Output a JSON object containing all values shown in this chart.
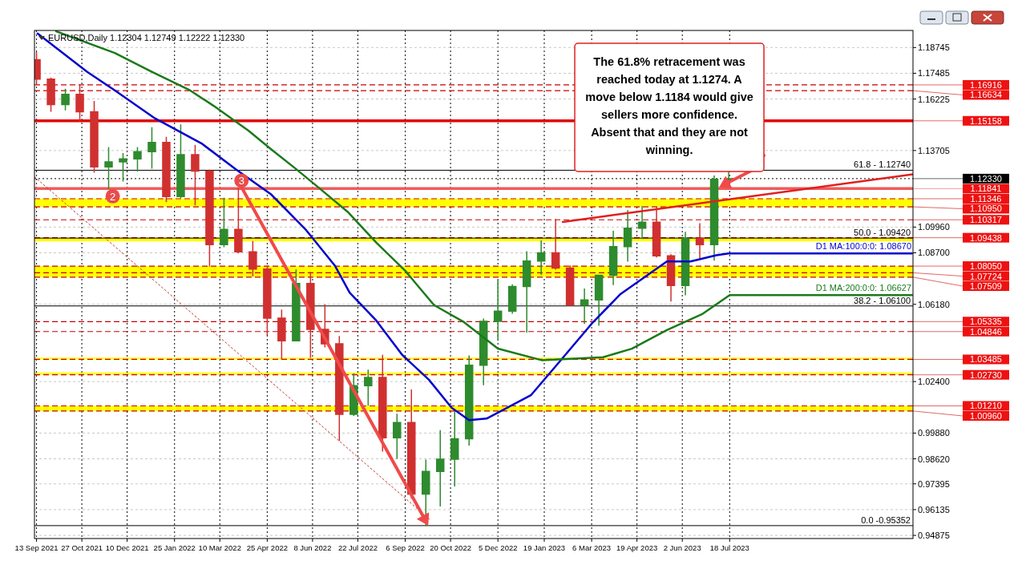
{
  "chart_data": {
    "type": "candlestick",
    "title": "EURUSD,Daily  1.12304 1.12749 1.12222 1.12330",
    "x": [
      "2021-09-13",
      "2021-09-27",
      "2021-10-11",
      "2021-10-25",
      "2021-11-08",
      "2021-11-22",
      "2021-12-06",
      "2021-12-20",
      "2022-01-03",
      "2022-01-17",
      "2022-01-31",
      "2022-02-14",
      "2022-02-28",
      "2022-03-14",
      "2022-03-28",
      "2022-04-11",
      "2022-04-25",
      "2022-05-09",
      "2022-05-23",
      "2022-06-06",
      "2022-06-20",
      "2022-07-04",
      "2022-07-18",
      "2022-08-01",
      "2022-08-15",
      "2022-08-29",
      "2022-09-12",
      "2022-09-26",
      "2022-10-10",
      "2022-10-24",
      "2022-11-07",
      "2022-11-21",
      "2022-12-05",
      "2022-12-19",
      "2023-01-02",
      "2023-01-16",
      "2023-01-30",
      "2023-02-13",
      "2023-02-27",
      "2023-03-13",
      "2023-03-27",
      "2023-04-10",
      "2023-04-24",
      "2023-05-08",
      "2023-05-22",
      "2023-06-05",
      "2023-06-19",
      "2023-07-03",
      "2023-07-17"
    ],
    "ohlc": [
      [
        1.1815,
        1.185,
        1.17,
        1.172
      ],
      [
        1.172,
        1.1725,
        1.1563,
        1.1595
      ],
      [
        1.1595,
        1.167,
        1.157,
        1.1645
      ],
      [
        1.1645,
        1.1692,
        1.1515,
        1.156
      ],
      [
        1.156,
        1.161,
        1.1265,
        1.129
      ],
      [
        1.129,
        1.1385,
        1.1186,
        1.1315
      ],
      [
        1.1315,
        1.1355,
        1.1222,
        1.133
      ],
      [
        1.133,
        1.1385,
        1.127,
        1.1365
      ],
      [
        1.1365,
        1.1482,
        1.1285,
        1.141
      ],
      [
        1.141,
        1.1435,
        1.1121,
        1.1145
      ],
      [
        1.1145,
        1.1495,
        1.114,
        1.135
      ],
      [
        1.135,
        1.1395,
        1.1105,
        1.127
      ],
      [
        1.127,
        1.1275,
        1.0806,
        1.091
      ],
      [
        1.091,
        1.1137,
        1.09,
        1.0985
      ],
      [
        1.0985,
        1.1185,
        1.087,
        1.0875
      ],
      [
        1.0875,
        1.0925,
        1.0758,
        1.079
      ],
      [
        1.079,
        1.0805,
        1.047,
        1.055
      ],
      [
        1.055,
        1.059,
        1.035,
        1.044
      ],
      [
        1.044,
        1.0786,
        1.044,
        1.072
      ],
      [
        1.072,
        1.0774,
        1.0359,
        1.0495
      ],
      [
        1.0495,
        1.0615,
        1.041,
        1.0425
      ],
      [
        1.0425,
        1.046,
        0.9952,
        1.008
      ],
      [
        1.008,
        1.0278,
        1.0075,
        1.022
      ],
      [
        1.022,
        1.0295,
        1.0125,
        1.026
      ],
      [
        1.026,
        1.0368,
        0.99,
        0.9965
      ],
      [
        0.9965,
        1.008,
        0.9865,
        1.004
      ],
      [
        1.004,
        1.0198,
        0.967,
        0.969
      ],
      [
        0.969,
        0.9855,
        0.9536,
        0.98
      ],
      [
        0.98,
        0.9999,
        0.9632,
        0.986
      ],
      [
        0.986,
        1.0093,
        0.973,
        0.996
      ],
      [
        0.996,
        1.0365,
        0.993,
        1.032
      ],
      [
        1.032,
        1.0545,
        1.0225,
        1.0535
      ],
      [
        1.0535,
        1.0736,
        1.0445,
        1.0585
      ],
      [
        1.0585,
        1.0713,
        1.0575,
        1.0705
      ],
      [
        1.0705,
        1.0875,
        1.0483,
        1.083
      ],
      [
        1.083,
        1.0928,
        1.0765,
        1.087
      ],
      [
        1.087,
        1.1033,
        1.079,
        1.0795
      ],
      [
        1.0795,
        1.0805,
        1.0613,
        1.0615
      ],
      [
        1.0615,
        1.0692,
        1.0525,
        1.064
      ],
      [
        1.064,
        1.076,
        1.0516,
        1.076
      ],
      [
        1.076,
        1.0975,
        1.0715,
        1.09
      ],
      [
        1.09,
        1.1076,
        1.083,
        1.099
      ],
      [
        1.099,
        1.1095,
        1.094,
        1.102
      ],
      [
        1.102,
        1.1092,
        1.085,
        1.0855
      ],
      [
        1.0855,
        1.086,
        1.0635,
        1.071
      ],
      [
        1.071,
        1.097,
        1.0665,
        1.094
      ],
      [
        1.094,
        1.1012,
        1.0845,
        1.091
      ],
      [
        1.091,
        1.1245,
        1.0835,
        1.123
      ],
      [
        1.12304,
        1.12749,
        1.12222,
        1.1233
      ]
    ],
    "series": [
      {
        "type": "line",
        "name": "D1 MA:100:0:0: 1.08670",
        "color": "#0000cc",
        "x": [
          "2021-09-14",
          "2021-11-01",
          "2021-11-28",
          "2022-01-06",
          "2022-02-20",
          "2022-03-26",
          "2022-04-29",
          "2022-06-02",
          "2022-06-30",
          "2022-07-14",
          "2022-08-09",
          "2022-09-03",
          "2022-09-29",
          "2022-10-21",
          "2022-11-07",
          "2022-11-24",
          "2023-01-06",
          "2023-02-06",
          "2023-03-06",
          "2023-04-03",
          "2023-05-18",
          "2023-06-10",
          "2023-07-05",
          "2023-07-17",
          "2024-01-11"
        ],
        "values": [
          1.1943,
          1.1756,
          1.1665,
          1.1528,
          1.1406,
          1.1277,
          1.1155,
          1.098,
          1.0805,
          1.0675,
          1.0538,
          1.0371,
          1.0249,
          1.0112,
          1.0051,
          1.0059,
          1.0173,
          1.0356,
          1.0523,
          1.0668,
          1.0828,
          1.0828,
          1.0858,
          1.0867,
          1.0867
        ]
      },
      {
        "type": "line",
        "name": "D1 MA:200:0:0: 1.06627",
        "color": "#1a7a1a",
        "x": [
          "2021-10-02",
          "2021-11-28",
          "2022-01-03",
          "2022-02-09",
          "2022-03-04",
          "2022-04-07",
          "2022-04-29",
          "2022-05-22",
          "2022-06-13",
          "2022-07-12",
          "2022-08-09",
          "2022-09-06",
          "2022-10-04",
          "2022-11-02",
          "2022-12-05",
          "2023-01-17",
          "2023-03-17",
          "2023-04-14",
          "2023-05-18",
          "2023-06-21",
          "2023-07-18",
          "2024-01-11"
        ],
        "values": [
          1.1954,
          1.1848,
          1.1756,
          1.1665,
          1.1589,
          1.1467,
          1.1376,
          1.1284,
          1.1193,
          1.1071,
          1.0919,
          1.0782,
          1.0614,
          1.0531,
          1.0401,
          1.0344,
          1.0359,
          1.0401,
          1.0492,
          1.0569,
          1.06627,
          1.06627
        ]
      },
      {
        "type": "line",
        "color": "#e02020",
        "x": [
          "2023-02-06",
          "2024-01-12"
        ],
        "values": [
          1.1021,
          1.1254
        ]
      },
      {
        "type": "line",
        "color": "#c0392b",
        "line_style": "dotted",
        "x": [
          "2021-09-11",
          "2022-10-01"
        ],
        "values": [
          1.1242,
          0.956
        ]
      }
    ],
    "xlim": [
      "2021-09-11",
      "2024-01-12"
    ],
    "ylim": [
      0.9472,
      1.1958
    ],
    "xticks": [
      {
        "value": "2021-09-13",
        "label": "13 Sep 2021"
      },
      {
        "value": "2021-10-27",
        "label": "27 Oct 2021"
      },
      {
        "value": "2021-12-10",
        "label": "10 Dec 2021"
      },
      {
        "value": "2022-01-25",
        "label": "25 Jan 2022"
      },
      {
        "value": "2022-03-10",
        "label": "10 Mar 2022"
      },
      {
        "value": "2022-04-25",
        "label": "25 Apr 2022"
      },
      {
        "value": "2022-06-08",
        "label": "8 Jun 2022"
      },
      {
        "value": "2022-07-22",
        "label": "22 Jul 2022"
      },
      {
        "value": "2022-09-06",
        "label": "6 Sep 2022"
      },
      {
        "value": "2022-10-20",
        "label": "20 Oct 2022"
      },
      {
        "value": "2022-12-05",
        "label": "5 Dec 2022"
      },
      {
        "value": "2023-01-19",
        "label": "19 Jan 2023"
      },
      {
        "value": "2023-03-06",
        "label": "6 Mar 2023"
      },
      {
        "value": "2023-04-19",
        "label": "19 Apr 2023"
      },
      {
        "value": "2023-06-02",
        "label": "2 Jun 2023"
      },
      {
        "value": "2023-07-18",
        "label": "18 Jul 2023"
      }
    ],
    "yticks": [
      1.18745,
      1.17485,
      1.16225,
      1.13705,
      {
        "value": 1.0996,
        "label": "1.09960"
      },
      {
        "value": 1.087,
        "label": "1.08700"
      },
      {
        "value": 1.0618,
        "label": "1.06180"
      },
      {
        "value": 1.024,
        "label": "1.02400"
      },
      {
        "value": 0.9988,
        "label": "0.99880"
      },
      {
        "value": 0.9862,
        "label": "0.98620"
      },
      0.97395,
      0.96135,
      0.94875
    ],
    "grid": true,
    "bands": [
      {
        "axis": "y",
        "from": 1.1095,
        "to": 1.11346,
        "color": "#ffff00"
      },
      {
        "axis": "y",
        "from": 1.0926,
        "to": 1.09438,
        "color": "#ffff00"
      },
      {
        "axis": "y",
        "from": 1.07509,
        "to": 1.0805,
        "color": "#ffff00"
      },
      {
        "axis": "y",
        "from": 1.03485,
        "to": 1.0357,
        "color": "#ffff00"
      },
      {
        "axis": "y",
        "from": 1.0273,
        "to": 1.0284,
        "color": "#ffff00"
      },
      {
        "axis": "y",
        "from": 1.0096,
        "to": 1.0121,
        "color": "#ffff00"
      }
    ],
    "ref_lines": [
      {
        "axis": "y",
        "value": 1.16916,
        "label": "1.16916",
        "color": "#cc0000",
        "line_style": "dashed"
      },
      {
        "axis": "y",
        "value": 1.16634,
        "label": "1.16634",
        "color": "#cc0000",
        "line_style": "dashed"
      },
      {
        "axis": "y",
        "value": 1.15158,
        "label": "1.15158",
        "color": "#e00000",
        "line_style": "solid"
      },
      {
        "axis": "y",
        "value": 1.11841,
        "label": "1.11841",
        "color": "#f05a5a",
        "line_style": "solid"
      },
      {
        "axis": "y",
        "value": 1.11346,
        "label": "1.11346",
        "color": "#cc0000",
        "line_style": "dashed"
      },
      {
        "axis": "y",
        "value": 1.1095,
        "label": "1.10950",
        "color": "#cc0000",
        "line_style": "dashed"
      },
      {
        "axis": "y",
        "value": 1.10317,
        "label": "1.10317",
        "color": "#cc0000",
        "line_style": "dashed"
      },
      {
        "axis": "y",
        "value": 1.09438,
        "label": "1.09438",
        "color": "#cc0000",
        "line_style": "dashed"
      },
      {
        "axis": "y",
        "value": 1.0805,
        "label": "1.08050",
        "color": "#cc0000",
        "line_style": "dashed"
      },
      {
        "axis": "y",
        "value": 1.07724,
        "label": "1.07724",
        "color": "#cc0000",
        "line_style": "dashed"
      },
      {
        "axis": "y",
        "value": 1.07509,
        "label": "1.07509",
        "color": "#cc0000",
        "line_style": "dashed"
      },
      {
        "axis": "y",
        "value": 1.05335,
        "label": "1.05335",
        "color": "#cc0000",
        "line_style": "dashed"
      },
      {
        "axis": "y",
        "value": 1.04846,
        "label": "1.04846",
        "color": "#cc0000",
        "line_style": "dashed"
      },
      {
        "axis": "y",
        "value": 1.03485,
        "label": "1.03485",
        "color": "#cc0000",
        "line_style": "dashed"
      },
      {
        "axis": "y",
        "value": 1.0273,
        "label": "1.02730",
        "color": "#cc0000",
        "line_style": "dashed"
      },
      {
        "axis": "y",
        "value": 1.0121,
        "label": "1.01210",
        "color": "#cc0000",
        "line_style": "dashed"
      },
      {
        "axis": "y",
        "value": 1.0096,
        "label": "1.00960",
        "color": "#cc0000",
        "line_style": "dashed"
      },
      {
        "axis": "y",
        "value": 1.1233,
        "label": "1.12330",
        "color": "#000000",
        "line_style": "dotted"
      },
      {
        "axis": "y",
        "value": 1.1274,
        "color": "#000000",
        "line_style": "solid"
      },
      {
        "axis": "y",
        "value": 1.0942,
        "color": "#000000",
        "line_style": "solid"
      },
      {
        "axis": "y",
        "value": 1.061,
        "color": "#000000",
        "line_style": "solid"
      },
      {
        "axis": "y",
        "value": 0.95352,
        "color": "#000000",
        "line_style": "solid"
      }
    ],
    "annotations": [
      "The 61.8% retracement was reached today at 1.1274. A move below 1.1184 would give sellers more confidence. Absent that and they are not winning.",
      {
        "text": "2",
        "x": "2021-11-26",
        "y": 1.1147
      },
      {
        "text": "3",
        "x": "2022-03-31",
        "y": 1.1223
      },
      {
        "text": "61.8 - 1.12740",
        "y": 1.1274
      },
      {
        "text": "50.0 - 1.09420",
        "y": 1.0942
      },
      {
        "text": "38.2 - 1.06100",
        "y": 1.061
      },
      {
        "text": "0.0 -0.95352",
        "y": 0.95352
      }
    ]
  }
}
